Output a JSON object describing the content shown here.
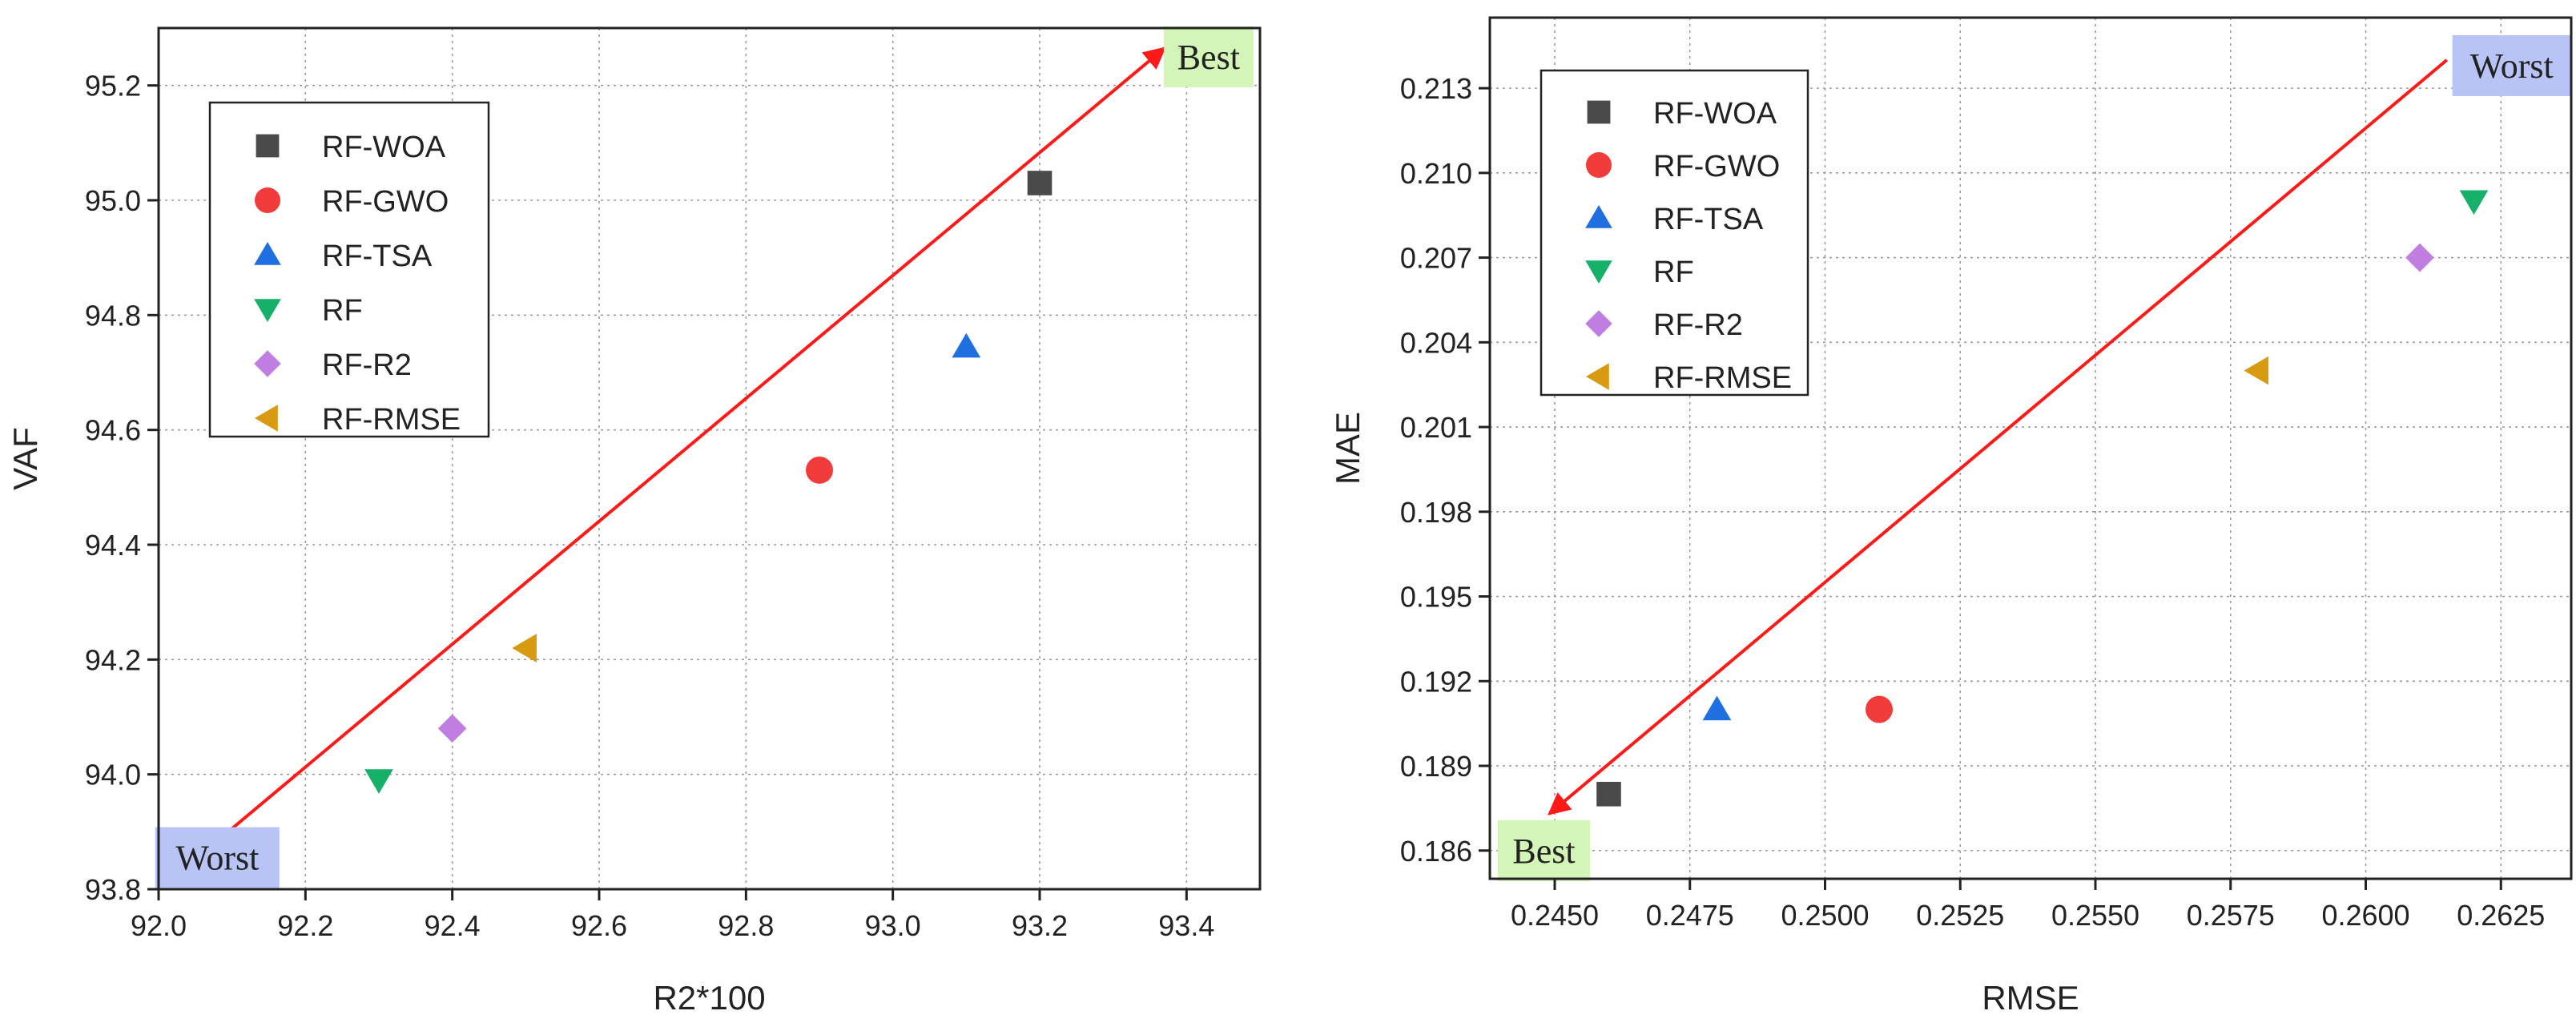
{
  "chart_data": [
    {
      "type": "scatter",
      "title": "",
      "xlabel": "R2*100",
      "ylabel": "VAF",
      "xlim": [
        92.0,
        93.5
      ],
      "ylim": [
        93.8,
        95.3
      ],
      "xticks": [
        "92.0",
        "92.2",
        "92.4",
        "92.6",
        "92.8",
        "93.0",
        "93.2",
        "93.4"
      ],
      "yticks": [
        "93.8",
        "94.0",
        "94.2",
        "94.4",
        "94.6",
        "94.8",
        "95.0",
        "95.2"
      ],
      "grid": true,
      "legend_position": "top-left",
      "series": [
        {
          "name": "RF-WOA",
          "marker": "square",
          "color": "#4a4a4a",
          "x": [
            93.2
          ],
          "y": [
            95.03
          ]
        },
        {
          "name": "RF-GWO",
          "marker": "circle",
          "color": "#f23b3b",
          "x": [
            92.9
          ],
          "y": [
            94.53
          ]
        },
        {
          "name": "RF-TSA",
          "marker": "triangle-up",
          "color": "#1f6fe0",
          "x": [
            93.1
          ],
          "y": [
            94.745
          ]
        },
        {
          "name": "RF",
          "marker": "triangle-down",
          "color": "#17b069",
          "x": [
            92.3
          ],
          "y": [
            93.99
          ]
        },
        {
          "name": "RF-R2",
          "marker": "diamond",
          "color": "#c07fe0",
          "x": [
            92.4
          ],
          "y": [
            94.08
          ]
        },
        {
          "name": "RF-RMSE",
          "marker": "triangle-left",
          "color": "#d89a10",
          "x": [
            92.5
          ],
          "y": [
            94.22
          ]
        }
      ],
      "arrow": {
        "from": [
          92.09,
          93.895
        ],
        "to": [
          93.37,
          95.265
        ],
        "color": "#ff1a1a"
      },
      "annotations": [
        {
          "text": "Best",
          "x": 93.43,
          "y": 95.25,
          "bg": "#d4f5b8"
        },
        {
          "text": "Worst",
          "x": 92.08,
          "y": 93.855,
          "bg": "#b8c4f5"
        }
      ]
    },
    {
      "type": "scatter",
      "title": "",
      "xlabel": "RMSE",
      "ylabel": "MAE",
      "xlim": [
        0.2438,
        0.2638
      ],
      "ylim": [
        0.185,
        0.2155
      ],
      "xticks": [
        "0.2450",
        "0.2475",
        "0.2500",
        "0.2525",
        "0.2550",
        "0.2575",
        "0.2600",
        "0.2625"
      ],
      "yticks": [
        "0.186",
        "0.189",
        "0.192",
        "0.195",
        "0.198",
        "0.201",
        "0.204",
        "0.207",
        "0.210",
        "0.213"
      ],
      "grid": true,
      "legend_position": "top-left",
      "series": [
        {
          "name": "RF-WOA",
          "marker": "square",
          "color": "#4a4a4a",
          "x": [
            0.246
          ],
          "y": [
            0.188
          ]
        },
        {
          "name": "RF-GWO",
          "marker": "circle",
          "color": "#f23b3b",
          "x": [
            0.251
          ],
          "y": [
            0.191
          ]
        },
        {
          "name": "RF-TSA",
          "marker": "triangle-up",
          "color": "#1f6fe0",
          "x": [
            0.248
          ],
          "y": [
            0.191
          ]
        },
        {
          "name": "RF",
          "marker": "triangle-down",
          "color": "#17b069",
          "x": [
            0.262
          ],
          "y": [
            0.209
          ]
        },
        {
          "name": "RF-R2",
          "marker": "diamond",
          "color": "#c07fe0",
          "x": [
            0.261
          ],
          "y": [
            0.207
          ]
        },
        {
          "name": "RF-RMSE",
          "marker": "triangle-left",
          "color": "#d89a10",
          "x": [
            0.258
          ],
          "y": [
            0.203
          ]
        }
      ],
      "arrow": {
        "from": [
          0.2615,
          0.214
        ],
        "to": [
          0.2449,
          0.1873
        ],
        "color": "#ff1a1a"
      },
      "annotations": [
        {
          "text": "Worst",
          "x": 0.2627,
          "y": 0.2138,
          "bg": "#b8c4f5"
        },
        {
          "text": "Best",
          "x": 0.2448,
          "y": 0.186,
          "bg": "#d4f5b8"
        }
      ]
    }
  ]
}
